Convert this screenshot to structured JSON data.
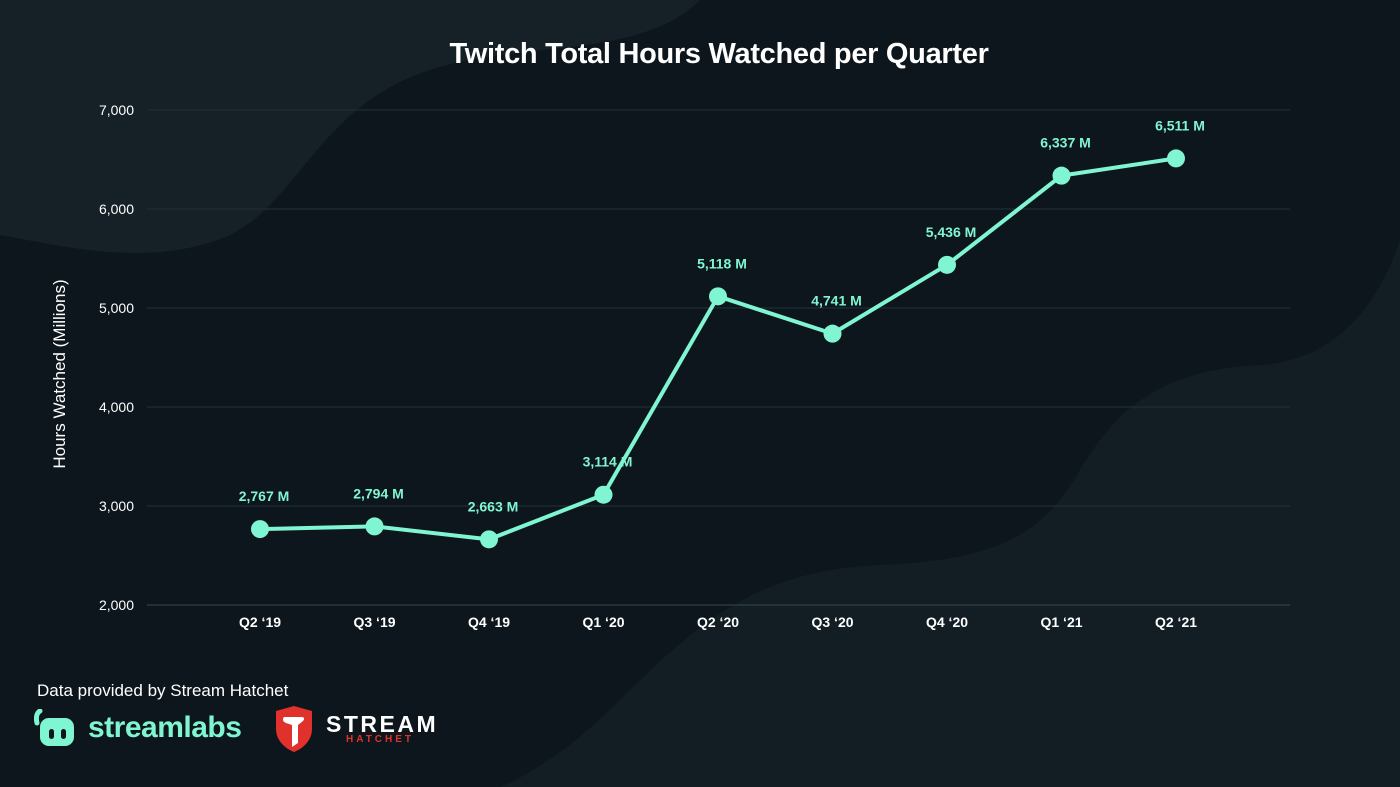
{
  "colors": {
    "background": "#0d161c",
    "accent": "#80f5d2",
    "grid": "#24313a",
    "text": "#ffffff",
    "brand_red": "#e0312d"
  },
  "chart_data": {
    "type": "line",
    "title": "Twitch Total Hours Watched per Quarter",
    "xlabel": "",
    "ylabel": "Hours Watched (Millions)",
    "ylim": [
      2000,
      7000
    ],
    "yticks": [
      "2,000",
      "3,000",
      "4,000",
      "5,000",
      "6,000",
      "7,000"
    ],
    "ytick_values": [
      2000,
      3000,
      4000,
      5000,
      6000,
      7000
    ],
    "grid": true,
    "categories": [
      "Q2 ‘19",
      "Q3 ‘19",
      "Q4 ‘19",
      "Q1 ‘20",
      "Q2 ‘20",
      "Q3 ‘20",
      "Q4 ‘20",
      "Q1 ‘21",
      "Q2 ‘21"
    ],
    "values": [
      2767,
      2794,
      2663,
      3114,
      5118,
      4741,
      5436,
      6337,
      6511
    ],
    "data_labels": [
      "2,767 M",
      "2,794 M",
      "2,663 M",
      "3,114 M",
      "5,118 M",
      "4,741 M",
      "5,436 M",
      "6,337 M",
      "6,511 M"
    ]
  },
  "footer": {
    "source_text": "Data provided by Stream Hatchet",
    "logo_streamlabs": "streamlabs",
    "logo_stream": "STREAM",
    "logo_hatchet": "HATCHET",
    "streamlabs_icon": "streamlabs-face-icon",
    "hatchet_icon": "hatchet-shield-icon"
  }
}
